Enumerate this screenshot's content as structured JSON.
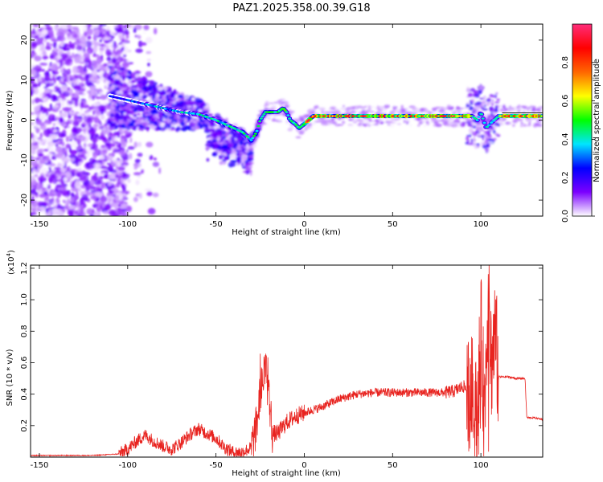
{
  "title": "PAZ1.2025.358.00.39.G18",
  "chart_data": [
    {
      "type": "heatmap",
      "xlabel": "Height of straight line (km)",
      "ylabel": "Frequency (Hz)",
      "xlim": [
        -155,
        135
      ],
      "ylim": [
        -24,
        24
      ],
      "xticks": [
        -150,
        -100,
        -50,
        0,
        50,
        100
      ],
      "yticks": [
        -20,
        -10,
        0,
        10,
        20
      ],
      "colorbar": {
        "label": "Normalized spectral amplitude",
        "range": [
          0,
          1
        ],
        "ticks": [
          0.0,
          0.2,
          0.4,
          0.6,
          0.8
        ],
        "colormap": [
          "#ffffff",
          "#7b00ff",
          "#0000ff",
          "#00e5ff",
          "#00ff00",
          "#ffff00",
          "#ff6600",
          "#ff0000",
          "#ff2d7a"
        ]
      },
      "ridge": {
        "x": [
          -110,
          -100,
          -90,
          -80,
          -70,
          -60,
          -50,
          -40,
          -35,
          -30,
          -27,
          -25,
          -22,
          -20,
          -15,
          -12,
          -10,
          -8,
          -5,
          -3,
          0,
          5,
          10,
          20,
          30,
          40,
          50,
          60,
          70,
          80,
          90,
          95,
          98,
          100,
          103,
          105,
          110,
          120,
          135
        ],
        "y": [
          6,
          5,
          4,
          3,
          2,
          1.5,
          0,
          -2,
          -3,
          -5,
          -3,
          0,
          2,
          2,
          2,
          3,
          2,
          0,
          -1,
          -2,
          -1,
          1,
          1,
          1,
          1,
          1,
          1,
          1,
          1,
          1,
          1,
          1,
          0,
          2,
          -2,
          -1,
          1,
          1,
          1
        ]
      }
    },
    {
      "type": "line",
      "xlabel": "Height of straight line (km)",
      "ylabel": "SNR (10 * v/v)",
      "y_multiplier": "(x10",
      "y_multiplier_exp": "4",
      "y_multiplier_close": ")",
      "xlim": [
        -155,
        135
      ],
      "ylim": [
        0,
        1.22
      ],
      "xticks": [
        -150,
        -100,
        -50,
        0,
        50,
        100
      ],
      "yticks": [
        0.2,
        0.4,
        0.6,
        0.8,
        1.0,
        1.2
      ],
      "series": [
        {
          "color": "#e8231f",
          "x": [
            -155,
            -140,
            -120,
            -105,
            -100,
            -95,
            -90,
            -85,
            -80,
            -75,
            -70,
            -65,
            -60,
            -55,
            -50,
            -45,
            -40,
            -35,
            -30,
            -27,
            -25,
            -22,
            -20,
            -18,
            -15,
            -10,
            -5,
            0,
            10,
            20,
            30,
            40,
            50,
            60,
            70,
            80,
            85,
            90,
            95,
            98,
            100,
            102,
            104,
            106,
            108,
            110,
            115,
            120,
            125,
            126,
            130,
            135
          ],
          "y": [
            0.01,
            0.01,
            0.01,
            0.02,
            0.05,
            0.1,
            0.14,
            0.1,
            0.07,
            0.05,
            0.09,
            0.14,
            0.18,
            0.15,
            0.12,
            0.06,
            0.03,
            0.03,
            0.06,
            0.2,
            0.4,
            0.56,
            0.38,
            0.15,
            0.15,
            0.22,
            0.26,
            0.28,
            0.32,
            0.37,
            0.4,
            0.41,
            0.41,
            0.41,
            0.41,
            0.41,
            0.42,
            0.45,
            0.4,
            0.2,
            0.8,
            0.3,
            1.0,
            0.6,
            0.8,
            0.51,
            0.51,
            0.5,
            0.5,
            0.25,
            0.25,
            0.24
          ]
        }
      ]
    }
  ]
}
